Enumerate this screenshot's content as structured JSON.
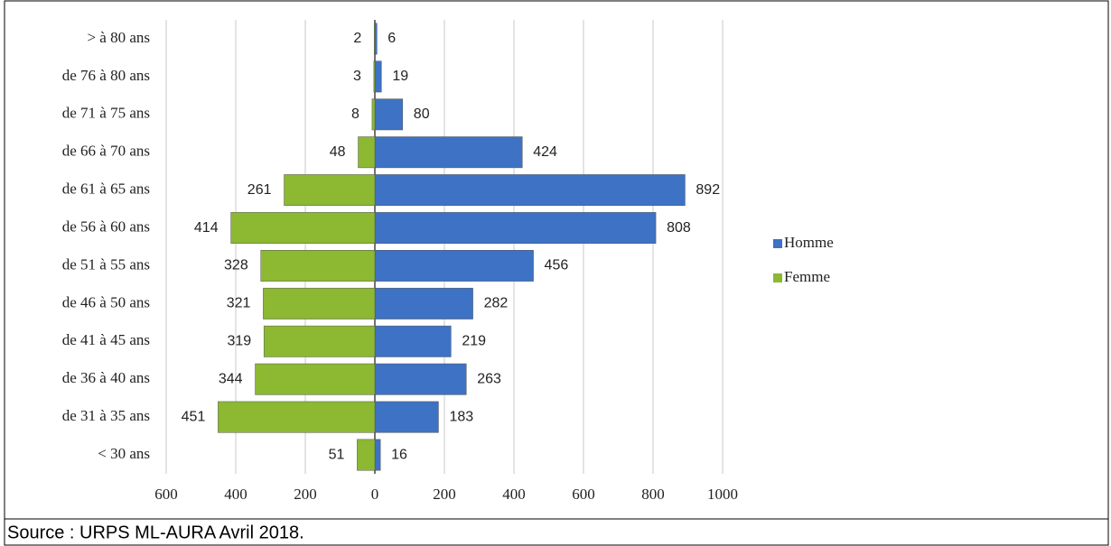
{
  "chart_data": {
    "type": "bar",
    "orientation": "horizontal",
    "stacked": true,
    "categories": [
      "> à 80 ans",
      "de 76 à 80 ans",
      "de 71 à 75 ans",
      "de 66 à 70 ans",
      "de 61 à 65 ans",
      "de 56 à 60 ans",
      "de 51 à 55 ans",
      "de 46 à 50 ans",
      "de 41 à 45 ans",
      "de 36 à 40 ans",
      "de 31 à 35 ans",
      "< 30 ans"
    ],
    "series": [
      {
        "name": "Homme",
        "color": "#3d72c4",
        "values": [
          6,
          19,
          80,
          424,
          892,
          808,
          456,
          282,
          219,
          263,
          183,
          16
        ]
      },
      {
        "name": "Femme",
        "color": "#8cb832",
        "values": [
          -2,
          -3,
          -8,
          -48,
          -261,
          -414,
          -328,
          -321,
          -319,
          -344,
          -451,
          -51
        ],
        "value_labels": [
          "2",
          "3",
          "8",
          "48",
          "261",
          "414",
          "328",
          "321",
          "319",
          "344",
          "451",
          "51"
        ]
      }
    ],
    "xlim": [
      -600,
      1000
    ],
    "xticks": [
      {
        "value": -600,
        "label": "600"
      },
      {
        "value": -400,
        "label": "400"
      },
      {
        "value": -200,
        "label": "200"
      },
      0,
      200,
      400,
      600,
      800,
      1000
    ],
    "grid": true,
    "legend": "right",
    "source": "Source : URPS ML-AURA Avril 2018."
  }
}
